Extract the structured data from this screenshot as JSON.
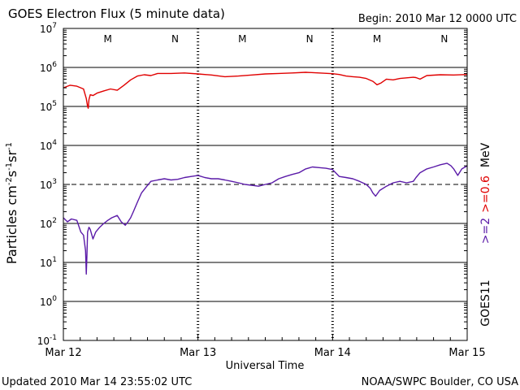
{
  "title": "GOES Electron Flux (5 minute data)",
  "begin_label": "Begin: 2010 Mar 12 0000 UTC",
  "updated_label": "Updated 2010 Mar 14 23:55:02 UTC",
  "source_label": "NOAA/SWPC Boulder, CO USA",
  "satellite_label": "GOES11",
  "colors": {
    "ge2": "#5a1aa8",
    "ge06": "#e00000",
    "mn": "#d40000",
    "axis": "#000000"
  },
  "chart_data": {
    "type": "line",
    "title": "GOES Electron Flux (5 minute data)",
    "xlabel": "Universal Time",
    "ylabel": "Particles cm^-2 s^-1 sr^-1",
    "ylabel_parts": {
      "base": "Particles cm",
      "exp1": "-2",
      "mid1": "s",
      "exp2": "-1",
      "mid2": "sr",
      "exp3": "-1"
    },
    "x_unit": "days since 2010 Mar 12 0000 UTC",
    "xlim": [
      0,
      3
    ],
    "ylim_log10": [
      -1,
      7
    ],
    "yscale": "log",
    "x_ticks": [
      {
        "pos": 0,
        "label": "Mar 12"
      },
      {
        "pos": 1,
        "label": "Mar 13"
      },
      {
        "pos": 2,
        "label": "Mar 14"
      },
      {
        "pos": 3,
        "label": "Mar 15"
      }
    ],
    "y_ticks": [
      {
        "exp": -1,
        "base": "10",
        "sup": "-1"
      },
      {
        "exp": 0,
        "base": "10",
        "sup": "0"
      },
      {
        "exp": 1,
        "base": "10",
        "sup": "1"
      },
      {
        "exp": 2,
        "base": "10",
        "sup": "2"
      },
      {
        "exp": 3,
        "base": "10",
        "sup": "3"
      },
      {
        "exp": 4,
        "base": "10",
        "sup": "4"
      },
      {
        "exp": 5,
        "base": "10",
        "sup": "5"
      },
      {
        "exp": 6,
        "base": "10",
        "sup": "6"
      },
      {
        "exp": 7,
        "base": "10",
        "sup": "7"
      }
    ],
    "grid_lines_log10": [
      0,
      1,
      2,
      4,
      5,
      6
    ],
    "threshold_log10": 3,
    "mn_markers": [
      {
        "pos": 0.33,
        "label": "M"
      },
      {
        "pos": 0.83,
        "label": "N"
      },
      {
        "pos": 1.33,
        "label": "M"
      },
      {
        "pos": 1.83,
        "label": "N"
      },
      {
        "pos": 2.33,
        "label": "M"
      },
      {
        "pos": 2.83,
        "label": "N"
      }
    ],
    "legend_labels": [
      {
        "name": ">=2",
        "color_key": "ge2"
      },
      {
        "name": ">=0.6",
        "color_key": "ge06"
      },
      {
        "name": "MeV",
        "color_key": "axis"
      }
    ],
    "series": [
      {
        "name": ">=0.6 MeV",
        "color_key": "ge06",
        "x": [
          0,
          0.05,
          0.1,
          0.15,
          0.17,
          0.18,
          0.185,
          0.19,
          0.2,
          0.22,
          0.25,
          0.3,
          0.35,
          0.4,
          0.45,
          0.5,
          0.55,
          0.6,
          0.65,
          0.7,
          0.8,
          0.9,
          1.0,
          1.1,
          1.2,
          1.3,
          1.4,
          1.5,
          1.6,
          1.7,
          1.8,
          1.9,
          2.0,
          2.05,
          2.1,
          2.15,
          2.2,
          2.25,
          2.3,
          2.33,
          2.36,
          2.4,
          2.45,
          2.5,
          2.55,
          2.6,
          2.62,
          2.65,
          2.7,
          2.8,
          2.9,
          3.0
        ],
        "y": [
          300000,
          350000,
          330000,
          280000,
          160000,
          100000,
          90000,
          150000,
          200000,
          190000,
          220000,
          250000,
          280000,
          260000,
          350000,
          480000,
          600000,
          650000,
          620000,
          700000,
          700000,
          720000,
          680000,
          640000,
          580000,
          600000,
          640000,
          680000,
          700000,
          720000,
          750000,
          720000,
          690000,
          660000,
          600000,
          580000,
          560000,
          520000,
          440000,
          360000,
          400000,
          500000,
          480000,
          520000,
          540000,
          560000,
          550000,
          500000,
          620000,
          650000,
          640000,
          660000
        ]
      },
      {
        "name": ">=2 MeV",
        "color_key": "ge2",
        "x": [
          0,
          0.03,
          0.06,
          0.1,
          0.13,
          0.15,
          0.165,
          0.17,
          0.175,
          0.18,
          0.19,
          0.2,
          0.22,
          0.24,
          0.27,
          0.3,
          0.33,
          0.36,
          0.4,
          0.43,
          0.46,
          0.48,
          0.5,
          0.52,
          0.55,
          0.58,
          0.62,
          0.65,
          0.7,
          0.75,
          0.8,
          0.85,
          0.9,
          0.95,
          1.0,
          1.05,
          1.1,
          1.15,
          1.2,
          1.25,
          1.3,
          1.35,
          1.4,
          1.45,
          1.5,
          1.55,
          1.6,
          1.65,
          1.7,
          1.75,
          1.8,
          1.85,
          1.9,
          1.95,
          2.0,
          2.05,
          2.1,
          2.15,
          2.2,
          2.25,
          2.28,
          2.3,
          2.32,
          2.35,
          2.4,
          2.45,
          2.5,
          2.55,
          2.6,
          2.62,
          2.65,
          2.7,
          2.75,
          2.8,
          2.85,
          2.88,
          2.9,
          2.93,
          2.96,
          3.0
        ],
        "y": [
          140,
          110,
          130,
          120,
          60,
          50,
          20,
          5,
          15,
          60,
          80,
          70,
          40,
          60,
          80,
          100,
          120,
          140,
          160,
          110,
          90,
          110,
          140,
          200,
          350,
          600,
          900,
          1200,
          1300,
          1400,
          1300,
          1350,
          1500,
          1600,
          1700,
          1500,
          1400,
          1400,
          1300,
          1200,
          1100,
          1000,
          950,
          900,
          1000,
          1100,
          1400,
          1600,
          1800,
          2000,
          2500,
          2800,
          2700,
          2600,
          2400,
          1600,
          1500,
          1400,
          1200,
          1000,
          800,
          600,
          500,
          700,
          900,
          1100,
          1200,
          1100,
          1200,
          1500,
          2000,
          2500,
          2800,
          3200,
          3500,
          3000,
          2500,
          1700,
          2500,
          3000
        ]
      }
    ]
  }
}
